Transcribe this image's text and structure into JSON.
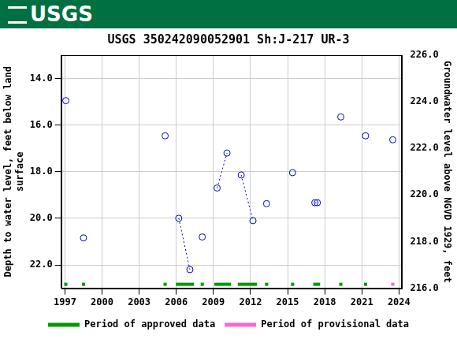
{
  "chart_data": {
    "type": "scatter",
    "logo_text": "USGS",
    "title": "USGS 350242090052901 Sh:J-217 UR-3",
    "y_label": [
      "Depth to water level, feet below land",
      "surface"
    ],
    "y2_label": "Groundwater level above NGVD 1929, feet",
    "xlim": [
      1996.7,
      2024.2
    ],
    "xticks": [
      1997,
      2000,
      2003,
      2006,
      2009,
      2012,
      2015,
      2018,
      2021,
      2024
    ],
    "ylim": [
      13,
      23
    ],
    "yticks": [
      {
        "value": 14,
        "label": "14.0"
      },
      {
        "value": 16,
        "label": "16.0"
      },
      {
        "value": 18,
        "label": "18.0"
      },
      {
        "value": 20,
        "label": "20.0"
      },
      {
        "value": 22,
        "label": "22.0"
      }
    ],
    "y2lim": [
      216,
      226
    ],
    "y2ticks": [
      {
        "value": 216,
        "label": "216.0"
      },
      {
        "value": 218,
        "label": "218.0"
      },
      {
        "value": 220,
        "label": "220.0"
      },
      {
        "value": 222,
        "label": "222.0"
      },
      {
        "value": 224,
        "label": "224.0"
      },
      {
        "value": 226,
        "label": "226.0"
      }
    ],
    "grid": true,
    "legend": "bottom",
    "series": [
      {
        "color": "#0000cc",
        "marker": "open_circle",
        "line_style": "dotted",
        "x": [
          1997.07
        ],
        "values": [
          14.95
        ]
      },
      {
        "color": "#0000cc",
        "marker": "open_circle",
        "line_style": "dotted",
        "x": [
          1998.5
        ],
        "values": [
          20.84
        ]
      },
      {
        "color": "#0000cc",
        "marker": "open_circle",
        "line_style": "dotted",
        "x": [
          2005.1
        ],
        "values": [
          16.46
        ]
      },
      {
        "color": "#0000cc",
        "marker": "open_circle",
        "line_style": "dotted",
        "x": [
          2006.2,
          2007.1
        ],
        "values": [
          20.0,
          22.2
        ]
      },
      {
        "color": "#0000cc",
        "marker": "open_circle",
        "line_style": "dotted",
        "x": [
          2008.1
        ],
        "values": [
          20.8
        ]
      },
      {
        "color": "#0000cc",
        "marker": "open_circle",
        "line_style": "dotted",
        "x": [
          2009.3,
          2010.1
        ],
        "values": [
          18.7,
          17.2
        ]
      },
      {
        "color": "#0000cc",
        "marker": "open_circle",
        "line_style": "dotted",
        "x": [
          2011.25,
          2012.2
        ],
        "values": [
          18.14,
          20.1
        ]
      },
      {
        "color": "#0000cc",
        "marker": "open_circle",
        "line_style": "dotted",
        "x": [
          2013.3
        ],
        "values": [
          19.37
        ]
      },
      {
        "color": "#0000cc",
        "marker": "open_circle",
        "line_style": "dotted",
        "x": [
          2015.4
        ],
        "values": [
          18.04
        ]
      },
      {
        "color": "#0000cc",
        "marker": "open_circle",
        "line_style": "dotted",
        "x": [
          2017.2,
          2017.4
        ],
        "values": [
          19.33,
          19.33
        ]
      },
      {
        "color": "#0000cc",
        "marker": "open_circle",
        "line_style": "dotted",
        "x": [
          2019.3
        ],
        "values": [
          15.65
        ]
      },
      {
        "color": "#0000cc",
        "marker": "open_circle",
        "line_style": "dotted",
        "x": [
          2021.3
        ],
        "values": [
          16.46
        ]
      },
      {
        "color": "#0000cc",
        "marker": "open_circle",
        "line_style": "dotted",
        "x": [
          2023.5
        ],
        "values": [
          16.63
        ]
      }
    ],
    "periods": [
      {
        "name": "Period of approved data",
        "color": "#009900",
        "ranges": [
          [
            1997.07,
            1997.07
          ],
          [
            1998.5,
            1998.5
          ],
          [
            2005.1,
            2005.1
          ],
          [
            2006.1,
            2007.3
          ],
          [
            2008.1,
            2008.1
          ],
          [
            2009.2,
            2010.3
          ],
          [
            2011.1,
            2012.4
          ],
          [
            2013.3,
            2013.3
          ],
          [
            2015.4,
            2015.4
          ],
          [
            2017.2,
            2017.5
          ],
          [
            2019.3,
            2019.3
          ],
          [
            2021.3,
            2021.3
          ]
        ]
      },
      {
        "name": "Period of provisional data",
        "color": "#ff66cc",
        "ranges": [
          [
            2023.5,
            2023.5
          ]
        ]
      }
    ]
  }
}
